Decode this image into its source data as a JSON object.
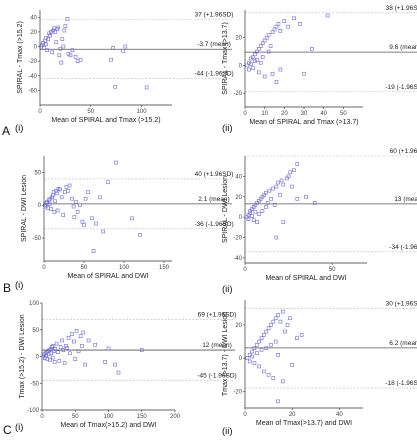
{
  "chart_data": [
    {
      "type": "scatter",
      "panel_letter": "A",
      "panel_roman": "(i)",
      "xlabel": "Mean of SPIRAL and Tmax (>15.2)",
      "ylabel": "SPIRAL - Tmax (>15.2)",
      "xlim": [
        0,
        130
      ],
      "ylim": [
        -80,
        50
      ],
      "xticks": [
        0,
        50,
        100
      ],
      "yticks": [
        -60,
        -40,
        -20,
        0,
        20,
        40
      ],
      "lines": [
        {
          "value": 37,
          "label": "37 (+1.96SD)",
          "dashed": true
        },
        {
          "value": -3.7,
          "label": "-3.7 (mean)",
          "dashed": false
        },
        {
          "value": -44,
          "label": "-44 (-1.96SD)",
          "dashed": true
        }
      ],
      "points": [
        [
          1,
          0
        ],
        [
          2,
          2
        ],
        [
          3,
          5
        ],
        [
          4,
          -2
        ],
        [
          5,
          8
        ],
        [
          6,
          3
        ],
        [
          6,
          12
        ],
        [
          7,
          -5
        ],
        [
          8,
          10
        ],
        [
          9,
          18
        ],
        [
          10,
          15
        ],
        [
          11,
          20
        ],
        [
          12,
          -8
        ],
        [
          13,
          22
        ],
        [
          14,
          25
        ],
        [
          15,
          20
        ],
        [
          16,
          6
        ],
        [
          17,
          24
        ],
        [
          18,
          26
        ],
        [
          19,
          -12
        ],
        [
          20,
          -3
        ],
        [
          21,
          -22
        ],
        [
          22,
          10
        ],
        [
          23,
          0
        ],
        [
          24,
          22
        ],
        [
          25,
          28
        ],
        [
          27,
          38
        ],
        [
          28,
          -10
        ],
        [
          30,
          -12
        ],
        [
          32,
          -5
        ],
        [
          35,
          -14
        ],
        [
          37,
          -20
        ],
        [
          40,
          -18
        ],
        [
          70,
          -18
        ],
        [
          72,
          -2
        ],
        [
          74,
          -55
        ],
        [
          82,
          -6
        ],
        [
          84,
          0
        ],
        [
          105,
          -56
        ]
      ]
    },
    {
      "type": "scatter",
      "panel_letter": "",
      "panel_roman": "(ii)",
      "xlabel": "Mean of SPIRAL and Tmax (>13.7)",
      "ylabel": "SPIRAL - Tmax (>13.7)",
      "xlim": [
        0,
        60
      ],
      "ylim": [
        -30,
        40
      ],
      "xticks": [
        0,
        10,
        20,
        30,
        40,
        50
      ],
      "yticks": [
        -20,
        0,
        20
      ],
      "lines": [
        {
          "value": 38,
          "label": "38 (+1.96SD)",
          "dashed": true
        },
        {
          "value": 9.6,
          "label": "9.6 (mean)",
          "dashed": false
        },
        {
          "value": -19,
          "label": "-19 (-1.96SD)",
          "dashed": true
        }
      ],
      "points": [
        [
          1,
          0
        ],
        [
          2,
          2
        ],
        [
          2,
          -3
        ],
        [
          3,
          5
        ],
        [
          3,
          1
        ],
        [
          4,
          6
        ],
        [
          4,
          -2
        ],
        [
          5,
          8
        ],
        [
          5,
          3
        ],
        [
          6,
          10
        ],
        [
          6,
          4
        ],
        [
          7,
          12
        ],
        [
          7,
          -5
        ],
        [
          8,
          14
        ],
        [
          8,
          2
        ],
        [
          9,
          16
        ],
        [
          9,
          6
        ],
        [
          10,
          18
        ],
        [
          10,
          -8
        ],
        [
          11,
          20
        ],
        [
          12,
          22
        ],
        [
          12,
          10
        ],
        [
          13,
          14
        ],
        [
          14,
          24
        ],
        [
          14,
          -6
        ],
        [
          15,
          26
        ],
        [
          16,
          28
        ],
        [
          17,
          30
        ],
        [
          18,
          25
        ],
        [
          20,
          32
        ],
        [
          22,
          28
        ],
        [
          25,
          34
        ],
        [
          28,
          30
        ],
        [
          30,
          -6
        ],
        [
          34,
          12
        ],
        [
          42,
          36
        ],
        [
          16,
          -12
        ],
        [
          18,
          -3
        ]
      ]
    },
    {
      "type": "scatter",
      "panel_letter": "B",
      "panel_roman": "(i)",
      "xlabel": "Mean of SPIRAL and DWI",
      "ylabel": "SPIRAL - DWI Lesion",
      "xlim": [
        0,
        160
      ],
      "ylim": [
        -85,
        75
      ],
      "xticks": [
        0,
        50,
        100,
        150
      ],
      "yticks": [
        -50,
        0,
        50
      ],
      "lines": [
        {
          "value": 40,
          "label": "40 (+1.96SD)",
          "dashed": true
        },
        {
          "value": 2.1,
          "label": "2.1 (mean)",
          "dashed": false
        },
        {
          "value": -36,
          "label": "-36 (-1.96SD)",
          "dashed": true
        }
      ],
      "points": [
        [
          1,
          0
        ],
        [
          2,
          -2
        ],
        [
          3,
          3
        ],
        [
          4,
          5
        ],
        [
          5,
          -4
        ],
        [
          6,
          8
        ],
        [
          7,
          2
        ],
        [
          8,
          10
        ],
        [
          9,
          -6
        ],
        [
          10,
          12
        ],
        [
          11,
          15
        ],
        [
          12,
          20
        ],
        [
          13,
          -10
        ],
        [
          14,
          6
        ],
        [
          15,
          22
        ],
        [
          16,
          18
        ],
        [
          17,
          -8
        ],
        [
          18,
          25
        ],
        [
          20,
          24
        ],
        [
          22,
          12
        ],
        [
          24,
          -15
        ],
        [
          26,
          20
        ],
        [
          28,
          28
        ],
        [
          30,
          22
        ],
        [
          32,
          30
        ],
        [
          35,
          10
        ],
        [
          37,
          -2
        ],
        [
          38,
          -18
        ],
        [
          40,
          5
        ],
        [
          42,
          -10
        ],
        [
          45,
          0
        ],
        [
          48,
          -25
        ],
        [
          50,
          -30
        ],
        [
          52,
          10
        ],
        [
          55,
          20
        ],
        [
          60,
          -20
        ],
        [
          62,
          -70
        ],
        [
          65,
          -28
        ],
        [
          70,
          12
        ],
        [
          74,
          -40
        ],
        [
          80,
          35
        ],
        [
          90,
          65
        ],
        [
          110,
          -20
        ],
        [
          120,
          -45
        ]
      ]
    },
    {
      "type": "scatter",
      "panel_letter": "",
      "panel_roman": "(ii)",
      "xlabel": "Mean of SPIRAL and DWI",
      "ylabel": "SPIRAL - DWI Lesion",
      "xlim": [
        0,
        70
      ],
      "ylim": [
        -45,
        60
      ],
      "xticks": [
        0,
        50
      ],
      "yticks": [
        -40,
        -20,
        0,
        20,
        40
      ],
      "lines": [
        {
          "value": 60,
          "label": "60 (+1.96SD)",
          "dashed": true
        },
        {
          "value": 13,
          "label": "13 (mean)",
          "dashed": false
        },
        {
          "value": -34,
          "label": "-34 (-1.96SD)",
          "dashed": true
        }
      ],
      "points": [
        [
          1,
          0
        ],
        [
          2,
          2
        ],
        [
          2,
          -2
        ],
        [
          3,
          4
        ],
        [
          3,
          6
        ],
        [
          4,
          1
        ],
        [
          4,
          8
        ],
        [
          5,
          10
        ],
        [
          5,
          -3
        ],
        [
          6,
          12
        ],
        [
          6,
          5
        ],
        [
          7,
          14
        ],
        [
          7,
          -5
        ],
        [
          8,
          16
        ],
        [
          8,
          3
        ],
        [
          9,
          18
        ],
        [
          10,
          20
        ],
        [
          10,
          6
        ],
        [
          11,
          22
        ],
        [
          12,
          10
        ],
        [
          12,
          24
        ],
        [
          13,
          14
        ],
        [
          14,
          26
        ],
        [
          15,
          18
        ],
        [
          16,
          28
        ],
        [
          17,
          12
        ],
        [
          18,
          30
        ],
        [
          19,
          34
        ],
        [
          20,
          22
        ],
        [
          21,
          36
        ],
        [
          22,
          32
        ],
        [
          24,
          38
        ],
        [
          25,
          40
        ],
        [
          26,
          44
        ],
        [
          27,
          30
        ],
        [
          28,
          46
        ],
        [
          30,
          52
        ],
        [
          18,
          -20
        ],
        [
          22,
          -5
        ],
        [
          30,
          18
        ],
        [
          35,
          20
        ],
        [
          40,
          14
        ]
      ]
    },
    {
      "type": "scatter",
      "panel_letter": "C",
      "panel_roman": "(i)",
      "xlabel": "Mean of Tmax(>15.2) and DWI",
      "ylabel": "Tmax (>15.2) - DWI Lesion",
      "xlim": [
        0,
        200
      ],
      "ylim": [
        -100,
        100
      ],
      "xticks": [
        0,
        50,
        100,
        150,
        200
      ],
      "yticks": [
        -100,
        -50,
        0,
        50,
        100
      ],
      "lines": [
        {
          "value": 69,
          "label": "69 (+1.96SD)",
          "dashed": true
        },
        {
          "value": 12,
          "label": "12 (mean)",
          "dashed": false
        },
        {
          "value": -45,
          "label": "-45 (-1.96SD)",
          "dashed": true
        }
      ],
      "points": [
        [
          2,
          0
        ],
        [
          3,
          4
        ],
        [
          4,
          -3
        ],
        [
          5,
          6
        ],
        [
          6,
          2
        ],
        [
          7,
          8
        ],
        [
          8,
          -5
        ],
        [
          9,
          10
        ],
        [
          10,
          4
        ],
        [
          11,
          12
        ],
        [
          12,
          -6
        ],
        [
          13,
          14
        ],
        [
          14,
          6
        ],
        [
          15,
          18
        ],
        [
          16,
          -2
        ],
        [
          17,
          20
        ],
        [
          18,
          10
        ],
        [
          19,
          -10
        ],
        [
          20,
          14
        ],
        [
          22,
          24
        ],
        [
          24,
          8
        ],
        [
          26,
          -8
        ],
        [
          28,
          18
        ],
        [
          30,
          30
        ],
        [
          32,
          12
        ],
        [
          34,
          -12
        ],
        [
          36,
          20
        ],
        [
          38,
          16
        ],
        [
          40,
          35
        ],
        [
          42,
          6
        ],
        [
          45,
          42
        ],
        [
          48,
          28
        ],
        [
          50,
          -5
        ],
        [
          52,
          48
        ],
        [
          55,
          10
        ],
        [
          58,
          38
        ],
        [
          60,
          20
        ],
        [
          62,
          45
        ],
        [
          65,
          -15
        ],
        [
          70,
          30
        ],
        [
          80,
          22
        ],
        [
          95,
          -10
        ],
        [
          100,
          15
        ],
        [
          110,
          -15
        ],
        [
          115,
          -30
        ],
        [
          150,
          12
        ]
      ]
    },
    {
      "type": "scatter",
      "panel_letter": "",
      "panel_roman": "(ii)",
      "xlabel": "Mean of Tmax(>13.7) and DWI",
      "ylabel": "Tmax (>13.7) - DWI Lesion",
      "xlim": [
        0,
        50
      ],
      "ylim": [
        -30,
        35
      ],
      "xticks": [
        0,
        20,
        40
      ],
      "yticks": [
        -20,
        0,
        20
      ],
      "lines": [
        {
          "value": 30,
          "label": "30 (+1.96SD)",
          "dashed": true
        },
        {
          "value": 6.2,
          "label": "6.2 (mean)",
          "dashed": false
        },
        {
          "value": -18,
          "label": "-18 (-1.96SD)",
          "dashed": true
        }
      ],
      "points": [
        [
          1,
          0
        ],
        [
          2,
          2
        ],
        [
          2,
          -2
        ],
        [
          3,
          4
        ],
        [
          3,
          1
        ],
        [
          4,
          6
        ],
        [
          4,
          -3
        ],
        [
          5,
          8
        ],
        [
          5,
          3
        ],
        [
          6,
          10
        ],
        [
          6,
          -5
        ],
        [
          7,
          12
        ],
        [
          7,
          5
        ],
        [
          8,
          14
        ],
        [
          8,
          -8
        ],
        [
          9,
          16
        ],
        [
          9,
          6
        ],
        [
          10,
          18
        ],
        [
          10,
          -10
        ],
        [
          11,
          20
        ],
        [
          11,
          8
        ],
        [
          12,
          22
        ],
        [
          12,
          -12
        ],
        [
          13,
          24
        ],
        [
          13,
          10
        ],
        [
          14,
          26
        ],
        [
          14,
          2
        ],
        [
          15,
          22
        ],
        [
          16,
          28
        ],
        [
          16,
          -14
        ],
        [
          17,
          16
        ],
        [
          18,
          20
        ],
        [
          19,
          24
        ],
        [
          20,
          -4
        ],
        [
          22,
          12
        ],
        [
          24,
          14
        ],
        [
          14,
          -26
        ]
      ]
    }
  ]
}
